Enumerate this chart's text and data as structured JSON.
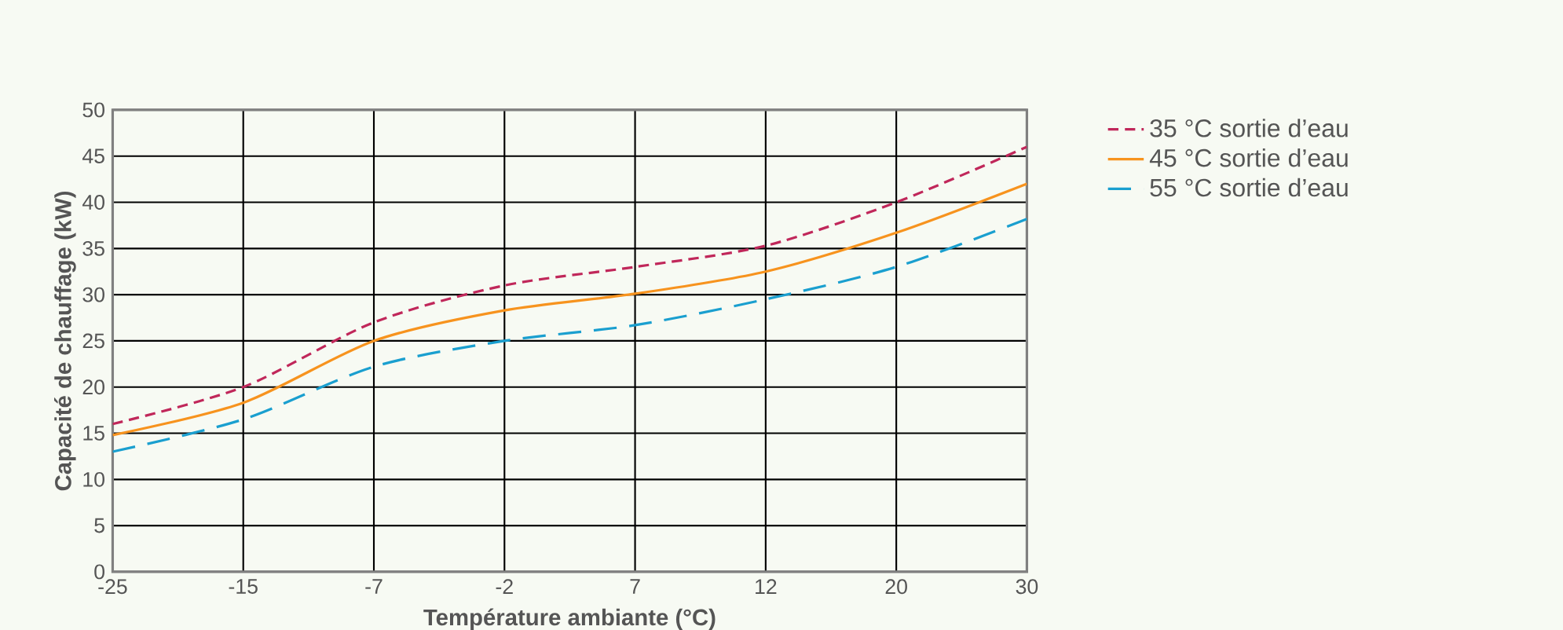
{
  "chart_data": {
    "type": "line",
    "xlabel": "Température ambiante (°C)",
    "ylabel": "Capacité de chauffage (kW)",
    "categories": [
      "-25",
      "-15",
      "-7",
      "-2",
      "7",
      "12",
      "20",
      "30"
    ],
    "ylim": [
      0,
      50
    ],
    "yticks": [
      0,
      5,
      10,
      15,
      20,
      25,
      30,
      35,
      40,
      45,
      50
    ],
    "grid": true,
    "legend": "right",
    "series": [
      {
        "name": "35 °C sortie d’eau",
        "color": "#c0275a",
        "line_style": "dashed",
        "values": [
          16,
          20,
          27,
          31,
          33,
          35.3,
          40,
          46
        ]
      },
      {
        "name": "45 °C sortie d’eau",
        "color": "#f7931e",
        "line_style": "solid",
        "values": [
          14.8,
          18.3,
          25,
          28.3,
          30.1,
          32.5,
          36.7,
          42
        ]
      },
      {
        "name": "55 °C sortie d’eau",
        "color": "#1a9fcf",
        "line_style": "loosely dashed",
        "values": [
          13,
          16.5,
          22.2,
          25,
          26.7,
          29.5,
          33,
          38.2
        ]
      }
    ]
  }
}
